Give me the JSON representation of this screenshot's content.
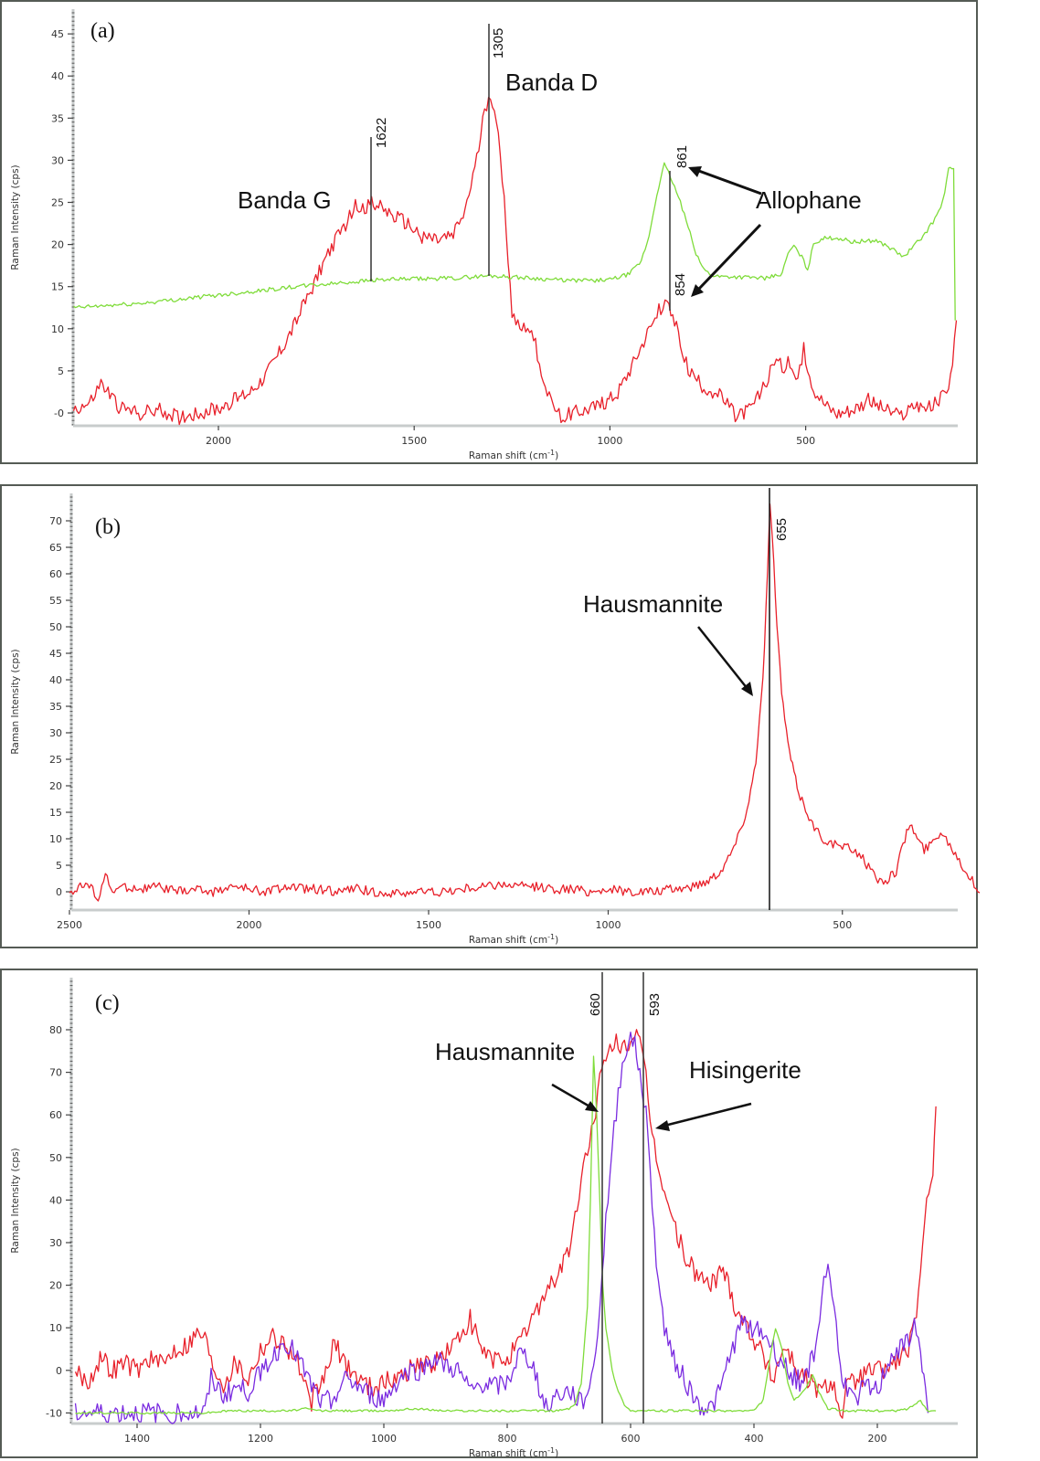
{
  "chart_data": [
    {
      "panel": "a",
      "type": "line",
      "panel_label": "(a)",
      "xlabel": "Raman shift (cm-1)",
      "xlabel_main": "Raman shift (cm",
      "xlabel_sup": "-1",
      "xlabel_close": ")",
      "ylabel": "Raman Intensity (cps)",
      "x_ticks": [
        "2000",
        "1500",
        "1000",
        "500"
      ],
      "y_ticks": [
        "-0",
        "5",
        "10",
        "15",
        "20",
        "25",
        "30",
        "35",
        "40",
        "45"
      ],
      "xlim": [
        2370,
        110
      ],
      "ylim": [
        -1.5,
        47
      ],
      "x_reversed": true,
      "grid": false,
      "annotations": [
        "Banda G",
        "Banda D",
        "Allophane"
      ],
      "peak_markers": [
        {
          "label": "1622",
          "x": 1622
        },
        {
          "label": "1305",
          "x": 1305
        },
        {
          "label": "861",
          "x": 861
        },
        {
          "label": "854",
          "x": 854
        }
      ],
      "series": [
        {
          "name": "red spectrum",
          "color": "#e8202a",
          "x": [
            2370,
            2330,
            2300,
            2250,
            2200,
            2150,
            2100,
            2050,
            2000,
            1960,
            1920,
            1880,
            1840,
            1800,
            1760,
            1720,
            1680,
            1650,
            1622,
            1600,
            1560,
            1520,
            1480,
            1440,
            1400,
            1370,
            1340,
            1320,
            1305,
            1290,
            1270,
            1250,
            1230,
            1210,
            1190,
            1170,
            1150,
            1120,
            1100,
            1060,
            1020,
            980,
            940,
            900,
            870,
            854,
            830,
            800,
            760,
            720,
            700,
            680,
            640,
            600,
            580,
            560,
            540,
            520,
            505,
            480,
            450,
            420,
            380,
            340,
            300,
            260,
            220,
            180,
            150,
            130,
            115
          ],
          "y": [
            0.5,
            1,
            3.5,
            0.5,
            0,
            0.3,
            -0.5,
            0,
            0.5,
            1.5,
            2.5,
            4.5,
            7.5,
            11,
            15,
            19,
            22,
            24.5,
            24.5,
            25,
            23.5,
            22.5,
            21,
            20.5,
            21,
            24,
            30,
            36,
            38,
            35,
            25,
            12,
            10,
            10.5,
            8,
            4,
            1,
            -0.5,
            0,
            0.5,
            1,
            2.5,
            6,
            10,
            12.5,
            13,
            10,
            5,
            3,
            2,
            1,
            -0.5,
            0.5,
            3.5,
            6.5,
            5.5,
            6,
            3.5,
            7.5,
            3,
            1,
            0,
            0.5,
            1.5,
            0.5,
            -0.5,
            1,
            0.5,
            2,
            4,
            11
          ]
        },
        {
          "name": "green spectrum",
          "color": "#7fdc3a",
          "x": [
            2370,
            2200,
            2000,
            1800,
            1600,
            1400,
            1305,
            1200,
            1100,
            1000,
            950,
            920,
            900,
            880,
            861,
            845,
            820,
            800,
            780,
            760,
            740,
            720,
            700,
            650,
            600,
            560,
            545,
            530,
            510,
            495,
            480,
            460,
            420,
            380,
            320,
            280,
            250,
            220,
            200,
            170,
            150,
            135,
            122,
            118,
            118
          ],
          "y": [
            12.5,
            13,
            14,
            15,
            15.8,
            16,
            16.3,
            16,
            15.7,
            15.8,
            16.5,
            18,
            21,
            26,
            29.5,
            28,
            25,
            22,
            19,
            17,
            16.4,
            16.2,
            16.2,
            16.1,
            16,
            16.5,
            19,
            19.8,
            18.5,
            17,
            20,
            20.7,
            20.8,
            20.3,
            20.5,
            19.5,
            18.5,
            20,
            21,
            23,
            25,
            29,
            28.8,
            11,
            11
          ]
        }
      ]
    },
    {
      "panel": "b",
      "type": "line",
      "panel_label": "(b)",
      "xlabel": "Raman shift (cm-1)",
      "xlabel_main": "Raman shift (cm",
      "xlabel_sup": "-1",
      "xlabel_close": ")",
      "ylabel": "Raman Intensity (cps)",
      "x_ticks": [
        "2500",
        "2000",
        "1500",
        "1000",
        "500"
      ],
      "y_ticks": [
        "0",
        "5",
        "10",
        "15",
        "20",
        "25",
        "30",
        "35",
        "40",
        "45",
        "50",
        "55",
        "60",
        "65",
        "70"
      ],
      "xlim": [
        2500,
        120
      ],
      "ylim": [
        -3.5,
        73
      ],
      "x_reversed": true,
      "grid": false,
      "annotations": [
        "Hausmannite"
      ],
      "peak_markers": [
        {
          "label": "655",
          "x": 655
        }
      ],
      "series": [
        {
          "name": "red spectrum",
          "color": "#e8202a",
          "x": [
            2500,
            2450,
            2420,
            2400,
            2380,
            2350,
            2300,
            2250,
            2200,
            2150,
            2100,
            2050,
            2000,
            1950,
            1900,
            1850,
            1800,
            1750,
            1700,
            1650,
            1600,
            1550,
            1500,
            1450,
            1400,
            1350,
            1300,
            1250,
            1200,
            1150,
            1100,
            1050,
            1000,
            950,
            900,
            860,
            820,
            790,
            760,
            740,
            720,
            700,
            685,
            670,
            660,
            655,
            650,
            640,
            630,
            620,
            610,
            600,
            590,
            575,
            560,
            540,
            520,
            500,
            480,
            460,
            440,
            420,
            400,
            385,
            370,
            355,
            340,
            325,
            310,
            290,
            270,
            250,
            230,
            210,
            190,
            170,
            150,
            130,
            125
          ],
          "y": [
            0,
            1.5,
            -1,
            3,
            0,
            1,
            0.5,
            1,
            0,
            0.5,
            0,
            1,
            0.5,
            0,
            1,
            0.5,
            0.5,
            0,
            0.5,
            0,
            -0.5,
            0,
            0,
            0,
            0.5,
            1,
            1.5,
            1,
            1,
            0.5,
            0.5,
            0,
            0.5,
            0,
            0,
            0.5,
            1,
            2,
            4,
            7,
            11,
            17,
            25,
            40,
            60,
            73,
            68,
            50,
            38,
            30,
            25,
            21,
            18,
            15,
            12,
            10,
            9,
            8.5,
            8,
            7,
            4,
            2,
            2.5,
            4,
            9,
            13,
            10,
            8,
            9,
            11.5,
            9,
            6,
            3,
            0.5,
            0.5,
            0,
            0.5,
            1,
            1.5
          ]
        }
      ]
    },
    {
      "panel": "c",
      "type": "line",
      "panel_label": "(c)",
      "xlabel": "Raman shift (cm-1)",
      "xlabel_main": "Raman shift (cm",
      "xlabel_sup": "-1",
      "xlabel_close": ")",
      "ylabel": "Raman Intensity (cps)",
      "x_ticks": [
        "1400",
        "1200",
        "1000",
        "800",
        "600",
        "400",
        "200"
      ],
      "y_ticks": [
        "-10",
        "0",
        "10",
        "20",
        "30",
        "40",
        "50",
        "60",
        "70",
        "80"
      ],
      "xlim": [
        1500,
        100
      ],
      "ylim": [
        -12.5,
        88
      ],
      "x_reversed": true,
      "grid": false,
      "annotations": [
        "Hausmannite",
        "Hisingerite"
      ],
      "peak_markers": [
        {
          "label": "660",
          "x": 660
        },
        {
          "label": "593",
          "x": 593
        }
      ],
      "series": [
        {
          "name": "red spectrum",
          "color": "#e8202a",
          "x": [
            1500,
            1480,
            1460,
            1440,
            1420,
            1400,
            1380,
            1360,
            1340,
            1320,
            1300,
            1290,
            1280,
            1260,
            1240,
            1220,
            1200,
            1180,
            1160,
            1140,
            1130,
            1120,
            1100,
            1080,
            1060,
            1040,
            1020,
            1000,
            980,
            960,
            940,
            920,
            900,
            880,
            860,
            840,
            820,
            800,
            780,
            760,
            740,
            720,
            700,
            690,
            680,
            670,
            660,
            650,
            640,
            630,
            620,
            610,
            600,
            593,
            585,
            575,
            565,
            555,
            545,
            530,
            510,
            490,
            470,
            450,
            430,
            410,
            390,
            370,
            350,
            330,
            310,
            290,
            270,
            260,
            250,
            230,
            210,
            190,
            170,
            150,
            140,
            130,
            120,
            110,
            105
          ],
          "y": [
            0,
            -3,
            3,
            0,
            2,
            0,
            3,
            1,
            5,
            6,
            9,
            8,
            2,
            -3,
            2,
            -2,
            5,
            8,
            6,
            2,
            -3,
            -8,
            -3,
            6,
            1,
            -2,
            -4,
            -3,
            -2,
            0,
            2,
            1,
            4,
            7,
            12,
            4,
            2,
            3,
            6,
            12,
            18,
            22,
            28,
            35,
            45,
            52,
            58,
            68,
            72,
            76,
            77,
            76,
            77,
            80,
            76,
            68,
            55,
            48,
            42,
            34,
            26,
            22,
            20,
            24,
            15,
            10,
            5,
            -2,
            6,
            0,
            -3,
            -5,
            -2,
            -12,
            -4,
            -2,
            0,
            0,
            2,
            5,
            10,
            22,
            38,
            48,
            62
          ]
        },
        {
          "name": "purple spectrum",
          "color": "#7a2be0",
          "x": [
            1500,
            1290,
            1280,
            1260,
            1240,
            1220,
            1200,
            1180,
            1160,
            1140,
            1120,
            1100,
            1080,
            1060,
            1040,
            1020,
            1000,
            980,
            960,
            940,
            920,
            900,
            880,
            860,
            840,
            820,
            800,
            780,
            760,
            740,
            720,
            700,
            690,
            680,
            670,
            660,
            650,
            640,
            630,
            620,
            610,
            600,
            593,
            585,
            575,
            565,
            555,
            545,
            530,
            510,
            490,
            470,
            455,
            440,
            420,
            400,
            380,
            360,
            340,
            320,
            300,
            290,
            280,
            270,
            260,
            240,
            220,
            200,
            180,
            160,
            140,
            130,
            122,
            118
          ],
          "y": [
            -10,
            -10,
            -2,
            -6,
            -4,
            -5,
            0,
            3,
            7,
            3,
            -3,
            -8,
            -6,
            -2,
            -4,
            -6,
            -7,
            -3,
            0,
            0,
            3,
            1,
            0,
            -5,
            -3,
            -4,
            -3,
            4,
            2,
            -8,
            -6,
            -5,
            -6,
            -8,
            -5,
            0,
            15,
            35,
            52,
            65,
            75,
            78,
            76,
            70,
            60,
            40,
            20,
            10,
            3,
            -3,
            -8,
            -9,
            -5,
            3,
            11,
            10,
            8,
            3,
            -1,
            -3,
            5,
            18,
            25,
            15,
            0,
            -7,
            -4,
            -5,
            3,
            5,
            10,
            5,
            -5,
            -10
          ]
        },
        {
          "name": "green spectrum",
          "color": "#7fdc3a",
          "x": [
            1500,
            1290,
            1250,
            1200,
            1150,
            1130,
            1100,
            1050,
            1000,
            950,
            900,
            850,
            800,
            750,
            720,
            700,
            690,
            680,
            670,
            665,
            660,
            655,
            650,
            645,
            640,
            630,
            620,
            610,
            600,
            580,
            550,
            500,
            450,
            400,
            385,
            375,
            365,
            355,
            345,
            335,
            325,
            315,
            305,
            295,
            280,
            250,
            200,
            170,
            150,
            140,
            130,
            120,
            110,
            105
          ],
          "y": [
            -10,
            -10,
            -9.5,
            -9.5,
            -9.5,
            -9,
            -9.5,
            -9.5,
            -9.5,
            -9,
            -9.5,
            -9.5,
            -9.5,
            -9.5,
            -9.5,
            -9,
            -8,
            -3,
            15,
            40,
            74,
            60,
            40,
            20,
            10,
            0,
            -5,
            -8,
            -9.5,
            -9.5,
            -9.5,
            -9.5,
            -9.5,
            -9.5,
            -7,
            2,
            10,
            5,
            -3,
            -7,
            -6,
            -4,
            -1,
            -5,
            -9,
            -9.5,
            -9.5,
            -9.5,
            -9,
            -8,
            -7,
            -9.5,
            -9.5,
            -9.5
          ]
        }
      ]
    }
  ],
  "panels": {
    "a": {
      "letter": "(a)",
      "anno_g": "Banda G",
      "anno_d": "Banda D",
      "anno_allophane": "Allophane",
      "peak_1622": "1622",
      "peak_1305": "1305",
      "peak_861": "861",
      "peak_854": "854"
    },
    "b": {
      "letter": "(b)",
      "anno_haus": "Hausmannite",
      "peak_655": "655"
    },
    "c": {
      "letter": "(c)",
      "anno_haus": "Hausmannite",
      "anno_hising": "Hisingerite",
      "peak_660": "660",
      "peak_593": "593"
    }
  },
  "axis": {
    "ylabel": "Raman Intensity (cps)",
    "xlabel_main": "Raman shift (cm",
    "xlabel_sup": "-1",
    "xlabel_close": ")"
  }
}
